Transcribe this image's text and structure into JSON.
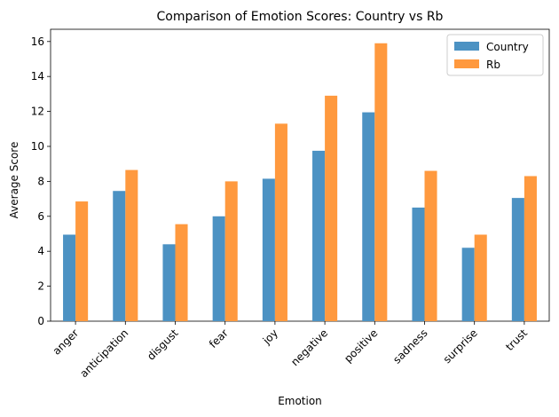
{
  "chart_data": {
    "type": "bar",
    "title": "Comparison of Emotion Scores: Country vs Rb",
    "xlabel": "Emotion",
    "ylabel": "Average Score",
    "categories": [
      "anger",
      "anticipation",
      "disgust",
      "fear",
      "joy",
      "negative",
      "positive",
      "sadness",
      "surprise",
      "trust"
    ],
    "series": [
      {
        "name": "Country",
        "color": "#4c92c3",
        "values": [
          4.95,
          7.45,
          4.4,
          6.0,
          8.15,
          9.75,
          11.95,
          6.5,
          4.2,
          7.05
        ]
      },
      {
        "name": "Rb",
        "color": "#ff993e",
        "values": [
          6.85,
          8.65,
          5.55,
          8.0,
          11.3,
          12.9,
          15.9,
          8.6,
          4.95,
          8.3
        ]
      }
    ],
    "ylim": [
      0,
      16.7
    ],
    "yticks": [
      0,
      2,
      4,
      6,
      8,
      10,
      12,
      14,
      16
    ],
    "legend_position": "top-right",
    "grid": false
  }
}
